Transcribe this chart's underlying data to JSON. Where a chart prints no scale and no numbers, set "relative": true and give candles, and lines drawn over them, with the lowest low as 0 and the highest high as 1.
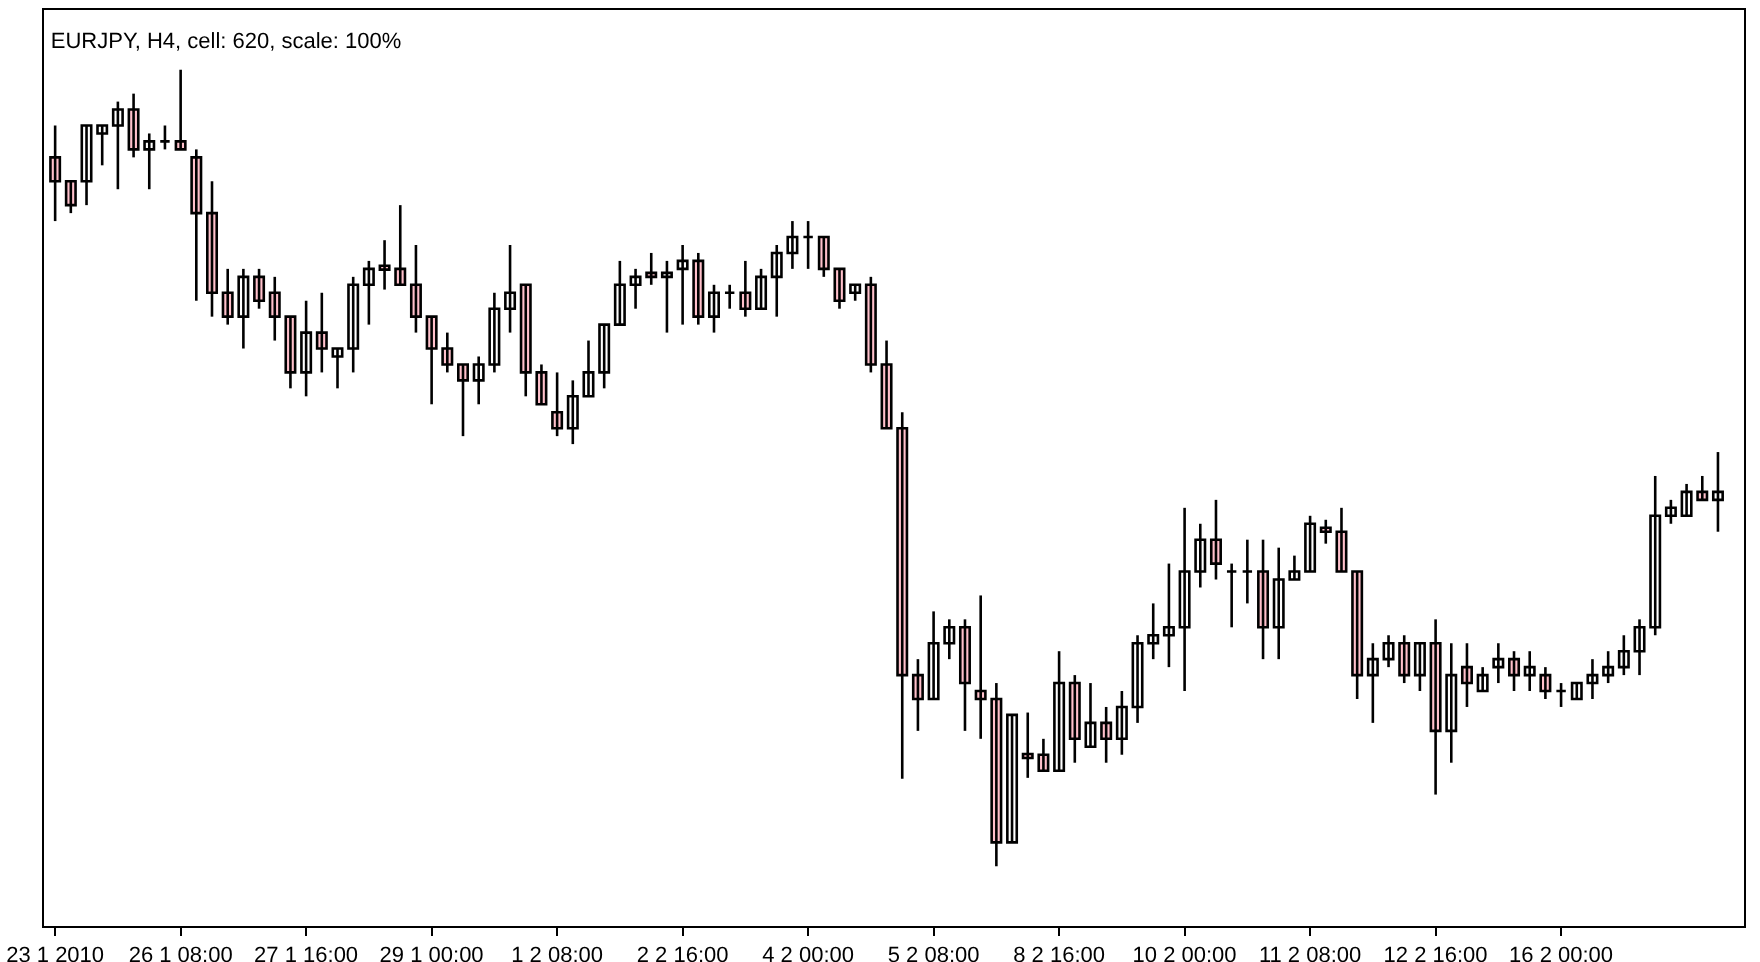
{
  "chart_data": {
    "type": "candlestick",
    "title": "EURJPY, H4, cell: 620, scale: 100%",
    "relative": true,
    "grid": false,
    "legend": false,
    "categories": [
      "23 1 2010",
      null,
      null,
      null,
      null,
      null,
      null,
      null,
      "26 1 08:00",
      null,
      null,
      null,
      null,
      null,
      null,
      null,
      "27 1 16:00",
      null,
      null,
      null,
      null,
      null,
      null,
      null,
      "29 1 00:00",
      null,
      null,
      null,
      null,
      null,
      null,
      null,
      "1 2 08:00",
      null,
      null,
      null,
      null,
      null,
      null,
      null,
      "2 2 16:00",
      null,
      null,
      null,
      null,
      null,
      null,
      null,
      "4 2 00:00",
      null,
      null,
      null,
      null,
      null,
      null,
      null,
      "5 2 08:00",
      null,
      null,
      null,
      null,
      null,
      null,
      null,
      "8 2 16:00",
      null,
      null,
      null,
      null,
      null,
      null,
      null,
      "10 2 00:00",
      null,
      null,
      null,
      null,
      null,
      null,
      null,
      "11 2 08:00",
      null,
      null,
      null,
      null,
      null,
      null,
      null,
      "12 2 16:00",
      null,
      null,
      null,
      null,
      null,
      null,
      null,
      "16 2 00:00",
      null,
      null,
      null,
      null,
      null,
      null,
      null,
      null,
      null,
      null
    ],
    "ohlc": [
      [
        0.89,
        0.93,
        0.81,
        0.86
      ],
      [
        0.86,
        0.86,
        0.82,
        0.83
      ],
      [
        0.86,
        0.93,
        0.83,
        0.93
      ],
      [
        0.92,
        0.93,
        0.88,
        0.93
      ],
      [
        0.93,
        0.96,
        0.85,
        0.95
      ],
      [
        0.95,
        0.97,
        0.89,
        0.9
      ],
      [
        0.9,
        0.92,
        0.85,
        0.91
      ],
      [
        0.91,
        0.93,
        0.9,
        0.91
      ],
      [
        0.91,
        1,
        0.9,
        0.9
      ],
      [
        0.89,
        0.9,
        0.71,
        0.82
      ],
      [
        0.82,
        0.86,
        0.69,
        0.72
      ],
      [
        0.72,
        0.75,
        0.68,
        0.69
      ],
      [
        0.69,
        0.75,
        0.65,
        0.74
      ],
      [
        0.74,
        0.75,
        0.7,
        0.71
      ],
      [
        0.72,
        0.74,
        0.66,
        0.69
      ],
      [
        0.69,
        0.69,
        0.6,
        0.62
      ],
      [
        0.62,
        0.71,
        0.59,
        0.67
      ],
      [
        0.67,
        0.72,
        0.62,
        0.65
      ],
      [
        0.64,
        0.65,
        0.6,
        0.65
      ],
      [
        0.65,
        0.74,
        0.62,
        0.73
      ],
      [
        0.73,
        0.76,
        0.68,
        0.75
      ],
      [
        0.754,
        0.786,
        0.724,
        0.749
      ],
      [
        0.75,
        0.83,
        0.73,
        0.73
      ],
      [
        0.73,
        0.78,
        0.67,
        0.69
      ],
      [
        0.69,
        0.69,
        0.58,
        0.65
      ],
      [
        0.65,
        0.67,
        0.62,
        0.63
      ],
      [
        0.63,
        0.63,
        0.54,
        0.61
      ],
      [
        0.61,
        0.64,
        0.58,
        0.63
      ],
      [
        0.63,
        0.72,
        0.62,
        0.7
      ],
      [
        0.7,
        0.78,
        0.67,
        0.72
      ],
      [
        0.73,
        0.73,
        0.59,
        0.62
      ],
      [
        0.62,
        0.63,
        0.58,
        0.58
      ],
      [
        0.57,
        0.62,
        0.54,
        0.55
      ],
      [
        0.55,
        0.61,
        0.53,
        0.59
      ],
      [
        0.59,
        0.66,
        0.59,
        0.62
      ],
      [
        0.62,
        0.68,
        0.6,
        0.68
      ],
      [
        0.68,
        0.76,
        0.68,
        0.73
      ],
      [
        0.73,
        0.75,
        0.7,
        0.74
      ],
      [
        0.745,
        0.77,
        0.73,
        0.74
      ],
      [
        0.74,
        0.76,
        0.67,
        0.745
      ],
      [
        0.75,
        0.78,
        0.68,
        0.76
      ],
      [
        0.76,
        0.77,
        0.68,
        0.69
      ],
      [
        0.69,
        0.73,
        0.67,
        0.72
      ],
      [
        0.72,
        0.73,
        0.7,
        0.72
      ],
      [
        0.72,
        0.76,
        0.69,
        0.7
      ],
      [
        0.7,
        0.75,
        0.7,
        0.74
      ],
      [
        0.74,
        0.78,
        0.69,
        0.77
      ],
      [
        0.77,
        0.81,
        0.75,
        0.79
      ],
      [
        0.79,
        0.81,
        0.75,
        0.79
      ],
      [
        0.79,
        0.79,
        0.74,
        0.75
      ],
      [
        0.75,
        0.75,
        0.7,
        0.71
      ],
      [
        0.72,
        0.73,
        0.71,
        0.73
      ],
      [
        0.73,
        0.74,
        0.62,
        0.63
      ],
      [
        0.63,
        0.66,
        0.55,
        0.55
      ],
      [
        0.55,
        0.57,
        0.11,
        0.24
      ],
      [
        0.24,
        0.26,
        0.17,
        0.21
      ],
      [
        0.21,
        0.32,
        0.21,
        0.28
      ],
      [
        0.28,
        0.31,
        0.26,
        0.3
      ],
      [
        0.3,
        0.31,
        0.17,
        0.23
      ],
      [
        0.22,
        0.34,
        0.16,
        0.21
      ],
      [
        0.21,
        0.23,
        0,
        0.03
      ],
      [
        0.03,
        0.19,
        0.03,
        0.19
      ],
      [
        0.141,
        0.193,
        0.111,
        0.136
      ],
      [
        0.14,
        0.16,
        0.12,
        0.12
      ],
      [
        0.12,
        0.27,
        0.12,
        0.23
      ],
      [
        0.23,
        0.24,
        0.13,
        0.16
      ],
      [
        0.15,
        0.23,
        0.15,
        0.18
      ],
      [
        0.18,
        0.2,
        0.13,
        0.16
      ],
      [
        0.16,
        0.22,
        0.14,
        0.2
      ],
      [
        0.2,
        0.29,
        0.18,
        0.28
      ],
      [
        0.28,
        0.33,
        0.26,
        0.29
      ],
      [
        0.29,
        0.38,
        0.25,
        0.3
      ],
      [
        0.3,
        0.45,
        0.22,
        0.37
      ],
      [
        0.37,
        0.43,
        0.35,
        0.41
      ],
      [
        0.41,
        0.46,
        0.36,
        0.38
      ],
      [
        0.37,
        0.38,
        0.3,
        0.37
      ],
      [
        0.37,
        0.41,
        0.33,
        0.37
      ],
      [
        0.37,
        0.41,
        0.26,
        0.3
      ],
      [
        0.3,
        0.4,
        0.26,
        0.36
      ],
      [
        0.36,
        0.39,
        0.36,
        0.37
      ],
      [
        0.37,
        0.44,
        0.37,
        0.43
      ],
      [
        0.425,
        0.435,
        0.405,
        0.42
      ],
      [
        0.42,
        0.45,
        0.37,
        0.37
      ],
      [
        0.37,
        0.37,
        0.21,
        0.24
      ],
      [
        0.24,
        0.28,
        0.18,
        0.26
      ],
      [
        0.26,
        0.29,
        0.25,
        0.28
      ],
      [
        0.28,
        0.29,
        0.23,
        0.24
      ],
      [
        0.24,
        0.28,
        0.22,
        0.28
      ],
      [
        0.28,
        0.31,
        0.09,
        0.17
      ],
      [
        0.17,
        0.28,
        0.13,
        0.24
      ],
      [
        0.25,
        0.28,
        0.2,
        0.23
      ],
      [
        0.22,
        0.25,
        0.22,
        0.24
      ],
      [
        0.25,
        0.28,
        0.23,
        0.26
      ],
      [
        0.26,
        0.27,
        0.22,
        0.24
      ],
      [
        0.24,
        0.27,
        0.22,
        0.25
      ],
      [
        0.24,
        0.25,
        0.21,
        0.22
      ],
      [
        0.22,
        0.23,
        0.2,
        0.22
      ],
      [
        0.21,
        0.23,
        0.21,
        0.23
      ],
      [
        0.23,
        0.26,
        0.21,
        0.24
      ],
      [
        0.24,
        0.27,
        0.23,
        0.25
      ],
      [
        0.25,
        0.29,
        0.24,
        0.27
      ],
      [
        0.27,
        0.31,
        0.24,
        0.3
      ],
      [
        0.3,
        0.49,
        0.29,
        0.44
      ],
      [
        0.44,
        0.46,
        0.43,
        0.45
      ],
      [
        0.44,
        0.48,
        0.44,
        0.47
      ],
      [
        0.47,
        0.49,
        0.46,
        0.46
      ],
      [
        0.46,
        0.52,
        0.42,
        0.47
      ]
    ]
  }
}
